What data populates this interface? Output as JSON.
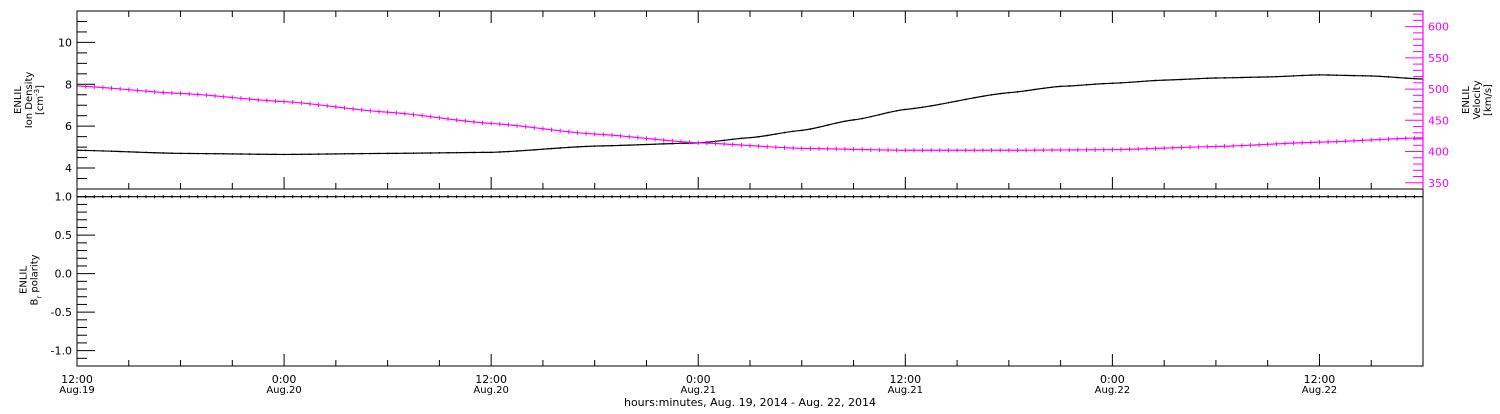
{
  "chart_data": [
    {
      "type": "line",
      "panel": "top",
      "x_unit": "hours since 2014-08-19 12:00",
      "xlim": [
        0,
        78
      ],
      "ylabel_left": [
        "ENLIL",
        "Ion Density",
        "[cm^-3]"
      ],
      "ylabel_right": [
        "ENLIL",
        "Velocity",
        "[km/s]"
      ],
      "ylim_left": [
        3,
        11.5
      ],
      "ylim_right": [
        340,
        625
      ],
      "yticks_left": [
        "4",
        "6",
        "8",
        "10"
      ],
      "yticks_right": [
        "350",
        "400",
        "450",
        "500",
        "550",
        "600"
      ],
      "series": [
        {
          "name": "Ion Density",
          "axis": "left",
          "color": "#000000",
          "x": [
            0,
            6,
            12,
            18,
            24,
            30,
            36,
            39,
            42,
            45,
            48,
            54,
            57,
            60,
            63,
            66,
            69,
            72,
            75,
            78
          ],
          "values": [
            4.85,
            4.7,
            4.65,
            4.7,
            4.75,
            5.05,
            5.2,
            5.45,
            5.8,
            6.3,
            6.8,
            7.6,
            7.9,
            8.05,
            8.2,
            8.3,
            8.35,
            8.45,
            8.4,
            8.25
          ]
        },
        {
          "name": "Velocity",
          "axis": "right",
          "color": "#ff00ff",
          "x": [
            0,
            6,
            12,
            18,
            24,
            30,
            36,
            42,
            48,
            54,
            60,
            66,
            72,
            78
          ],
          "values": [
            505,
            493,
            480,
            463,
            445,
            428,
            414,
            405,
            402,
            402,
            403,
            408,
            415,
            422
          ]
        }
      ]
    },
    {
      "type": "line",
      "panel": "bottom",
      "x_unit": "hours since 2014-08-19 12:00",
      "xlim": [
        0,
        78
      ],
      "ylabel": [
        "ENLIL",
        "Br polarity"
      ],
      "ylim": [
        -1.2,
        1.1
      ],
      "yticks": [
        "1.0",
        "0.5",
        "0.0",
        "-0.5",
        "-1.0"
      ],
      "series": [
        {
          "name": "Br polarity",
          "color": "#000000",
          "x": [
            0,
            78
          ],
          "values": [
            1.0,
            1.0
          ]
        }
      ],
      "xticks": [
        {
          "x": 0,
          "time": "12:00",
          "date": "Aug.19"
        },
        {
          "x": 12,
          "time": "0:00",
          "date": "Aug.20"
        },
        {
          "x": 24,
          "time": "12:00",
          "date": "Aug.20"
        },
        {
          "x": 36,
          "time": "0:00",
          "date": "Aug.21"
        },
        {
          "x": 48,
          "time": "12:00",
          "date": "Aug.21"
        },
        {
          "x": 60,
          "time": "0:00",
          "date": "Aug.22"
        },
        {
          "x": 72,
          "time": "12:00",
          "date": "Aug.22"
        }
      ],
      "xlabel": "hours:minutes, Aug. 19, 2014 - Aug. 22, 2014"
    }
  ]
}
